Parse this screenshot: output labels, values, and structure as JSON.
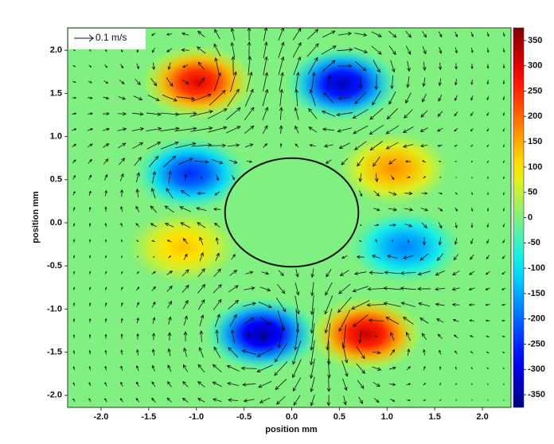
{
  "chart_data": {
    "type": "heatmap",
    "xlabel": "position mm",
    "ylabel": "position mm",
    "xlim": [
      -2.35,
      2.3
    ],
    "ylim": [
      -2.14,
      2.26
    ],
    "xticks": [
      {
        "value": -2,
        "label": "-2.0"
      },
      {
        "value": -1.5,
        "label": "-1.5"
      },
      {
        "value": -1,
        "label": "-1.0"
      },
      {
        "value": -0.5,
        "label": "-0.5"
      },
      {
        "value": 0,
        "label": "0.0"
      },
      {
        "value": 0.5,
        "label": "0.5"
      },
      {
        "value": 1,
        "label": "1.0"
      },
      {
        "value": 1.5,
        "label": "1.5"
      },
      {
        "value": 2,
        "label": "2.0"
      }
    ],
    "yticks": [
      {
        "value": -2,
        "label": "-2.0"
      },
      {
        "value": -1.5,
        "label": "-1.5"
      },
      {
        "value": -1,
        "label": "-1.0"
      },
      {
        "value": -0.5,
        "label": "-0.5"
      },
      {
        "value": 0,
        "label": "0.0"
      },
      {
        "value": 0.5,
        "label": "0.5"
      },
      {
        "value": 1,
        "label": "1.0"
      },
      {
        "value": 1.5,
        "label": "1.5"
      },
      {
        "value": 2,
        "label": "2.0"
      }
    ],
    "colorbar": {
      "lim": [
        -375,
        375
      ],
      "ticks": [
        350,
        300,
        250,
        200,
        150,
        100,
        50,
        0,
        -50,
        -100,
        -150,
        -200,
        -250,
        -300,
        -350
      ]
    },
    "reference_arrow": {
      "label": "0.1 m/s"
    },
    "vortices": [
      {
        "x": -0.98,
        "y": 1.63,
        "value": 300
      },
      {
        "x": 0.53,
        "y": 1.61,
        "value": -330
      },
      {
        "x": -1.06,
        "y": 0.57,
        "value": -250
      },
      {
        "x": 1.07,
        "y": 0.63,
        "value": 170
      },
      {
        "x": -1.14,
        "y": -0.28,
        "value": 130
      },
      {
        "x": 1.19,
        "y": -0.28,
        "value": -180
      },
      {
        "x": -0.31,
        "y": -1.29,
        "value": -350
      },
      {
        "x": 0.78,
        "y": -1.29,
        "value": 320
      }
    ],
    "obstacle": {
      "x": 0,
      "y": 0.12,
      "rx": 0.7,
      "ry": 0.63
    }
  }
}
